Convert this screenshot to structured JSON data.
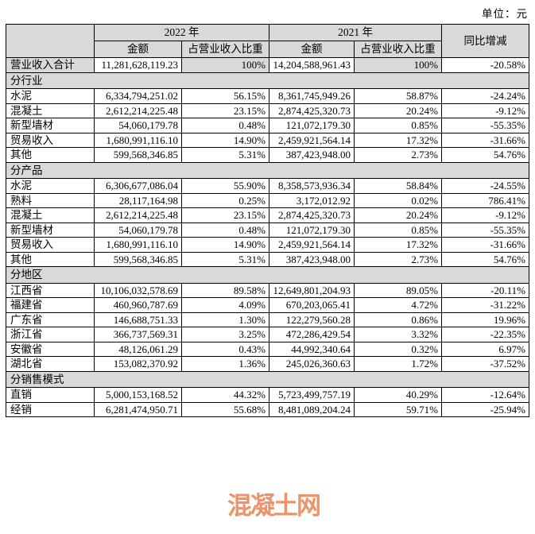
{
  "unit_label": "单位：元",
  "watermark": "混凝土网",
  "colors": {
    "header_bg": "#d9d9d9",
    "border": "#000000",
    "watermark": "#e87c4b"
  },
  "table": {
    "year_2022_header": "2022 年",
    "year_2021_header": "2021 年",
    "yoy_header": "同比增减",
    "amount_header": "金额",
    "ratio_header": "占营业收入比重",
    "rows": [
      {
        "type": "total",
        "label": "营业收入合计",
        "amount_2022": "11,281,628,119.23",
        "ratio_2022": "100%",
        "amount_2021": "14,204,588,961.43",
        "ratio_2021": "100%",
        "yoy": "-20.58%"
      },
      {
        "type": "section",
        "label": "分行业"
      },
      {
        "type": "data",
        "label": "水泥",
        "amount_2022": "6,334,794,251.02",
        "ratio_2022": "56.15%",
        "amount_2021": "8,361,745,949.26",
        "ratio_2021": "58.87%",
        "yoy": "-24.24%"
      },
      {
        "type": "data",
        "label": "混凝土",
        "amount_2022": "2,612,214,225.48",
        "ratio_2022": "23.15%",
        "amount_2021": "2,874,425,320.73",
        "ratio_2021": "20.24%",
        "yoy": "-9.12%"
      },
      {
        "type": "data",
        "label": "新型墙材",
        "amount_2022": "54,060,179.78",
        "ratio_2022": "0.48%",
        "amount_2021": "121,072,179.30",
        "ratio_2021": "0.85%",
        "yoy": "-55.35%"
      },
      {
        "type": "data",
        "label": "贸易收入",
        "amount_2022": "1,680,991,116.10",
        "ratio_2022": "14.90%",
        "amount_2021": "2,459,921,564.14",
        "ratio_2021": "17.32%",
        "yoy": "-31.66%"
      },
      {
        "type": "data",
        "label": "其他",
        "amount_2022": "599,568,346.85",
        "ratio_2022": "5.31%",
        "amount_2021": "387,423,948.00",
        "ratio_2021": "2.73%",
        "yoy": "54.76%"
      },
      {
        "type": "section",
        "label": "分产品"
      },
      {
        "type": "data",
        "label": "水泥",
        "amount_2022": "6,306,677,086.04",
        "ratio_2022": "55.90%",
        "amount_2021": "8,358,573,936.34",
        "ratio_2021": "58.84%",
        "yoy": "-24.55%"
      },
      {
        "type": "data",
        "label": "熟料",
        "amount_2022": "28,117,164.98",
        "ratio_2022": "0.25%",
        "amount_2021": "3,172,012.92",
        "ratio_2021": "0.02%",
        "yoy": "786.41%"
      },
      {
        "type": "data",
        "label": "混凝土",
        "amount_2022": "2,612,214,225.48",
        "ratio_2022": "23.15%",
        "amount_2021": "2,874,425,320.73",
        "ratio_2021": "20.24%",
        "yoy": "-9.12%"
      },
      {
        "type": "data",
        "label": "新型墙材",
        "amount_2022": "54,060,179.78",
        "ratio_2022": "0.48%",
        "amount_2021": "121,072,179.30",
        "ratio_2021": "0.85%",
        "yoy": "-55.35%"
      },
      {
        "type": "data",
        "label": "贸易收入",
        "amount_2022": "1,680,991,116.10",
        "ratio_2022": "14.90%",
        "amount_2021": "2,459,921,564.14",
        "ratio_2021": "17.32%",
        "yoy": "-31.66%"
      },
      {
        "type": "data",
        "label": "其他",
        "amount_2022": "599,568,346.85",
        "ratio_2022": "5.31%",
        "amount_2021": "387,423,948.00",
        "ratio_2021": "2.73%",
        "yoy": "54.76%"
      },
      {
        "type": "section",
        "label": "分地区"
      },
      {
        "type": "data",
        "label": "江西省",
        "amount_2022": "10,106,032,578.69",
        "ratio_2022": "89.58%",
        "amount_2021": "12,649,801,204.93",
        "ratio_2021": "89.05%",
        "yoy": "-20.11%"
      },
      {
        "type": "data",
        "label": "福建省",
        "amount_2022": "460,960,787.69",
        "ratio_2022": "4.09%",
        "amount_2021": "670,203,065.41",
        "ratio_2021": "4.72%",
        "yoy": "-31.22%"
      },
      {
        "type": "data",
        "label": "广东省",
        "amount_2022": "146,688,751.33",
        "ratio_2022": "1.30%",
        "amount_2021": "122,279,560.28",
        "ratio_2021": "0.86%",
        "yoy": "19.96%"
      },
      {
        "type": "data",
        "label": "浙江省",
        "amount_2022": "366,737,569.31",
        "ratio_2022": "3.25%",
        "amount_2021": "472,286,429.54",
        "ratio_2021": "3.32%",
        "yoy": "-22.35%"
      },
      {
        "type": "data",
        "label": "安徽省",
        "amount_2022": "48,126,061.29",
        "ratio_2022": "0.43%",
        "amount_2021": "44,992,340.64",
        "ratio_2021": "0.32%",
        "yoy": "6.97%"
      },
      {
        "type": "data",
        "label": "湖北省",
        "amount_2022": "153,082,370.92",
        "ratio_2022": "1.36%",
        "amount_2021": "245,026,360.63",
        "ratio_2021": "1.72%",
        "yoy": "-37.52%"
      },
      {
        "type": "section",
        "label": "分销售模式"
      },
      {
        "type": "data",
        "label": "直销",
        "amount_2022": "5,000,153,168.52",
        "ratio_2022": "44.32%",
        "amount_2021": "5,723,499,757.19",
        "ratio_2021": "40.29%",
        "yoy": "-12.64%"
      },
      {
        "type": "data",
        "label": "经销",
        "amount_2022": "6,281,474,950.71",
        "ratio_2022": "55.68%",
        "amount_2021": "8,481,089,204.24",
        "ratio_2021": "59.71%",
        "yoy": "-25.94%"
      }
    ]
  }
}
